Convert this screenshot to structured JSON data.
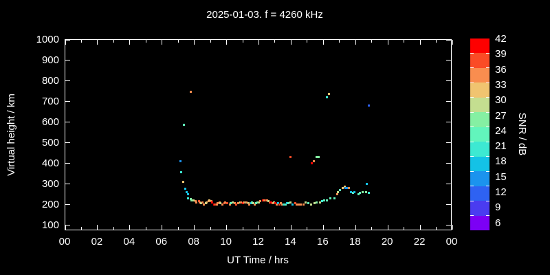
{
  "page": {
    "background": "#000000",
    "text_color": "#ffffff",
    "frame_color": "#ffffff"
  },
  "chart_data": {
    "type": "scatter",
    "title": "2025-01-03. f = 4260 kHz",
    "xlabel": "UT Time / hrs",
    "ylabel": "Virtual height / km",
    "colorbar_label": "SNR / dB",
    "xlim": [
      0,
      24
    ],
    "ylim": [
      73,
      1000
    ],
    "grid": false,
    "x_tick_hours": [
      0,
      2,
      4,
      6,
      8,
      10,
      12,
      14,
      16,
      18,
      20,
      22,
      24
    ],
    "x_tick_labels": [
      "00",
      "02",
      "04",
      "06",
      "08",
      "10",
      "12",
      "14",
      "16",
      "18",
      "20",
      "22",
      "00"
    ],
    "x_minor_step_hours": 1,
    "y_ticks": [
      100,
      200,
      300,
      400,
      500,
      600,
      700,
      800,
      900,
      1000
    ],
    "colorbar": {
      "tick_values": [
        42,
        39,
        36,
        33,
        30,
        27,
        24,
        21,
        18,
        15,
        12,
        9,
        6
      ],
      "segment_colors_top_to_bottom": [
        "#fe0000",
        "#fa4b26",
        "#f98d4f",
        "#f0c470",
        "#c4de90",
        "#85f0a3",
        "#62f5bc",
        "#3de9d2",
        "#14c2e6",
        "#1b93ee",
        "#2e62f2",
        "#4a3cf0",
        "#7c00f5"
      ]
    },
    "points_format": [
      "ut_hour",
      "virtual_height_km",
      "snr_db_band"
    ],
    "points": [
      [
        7.12,
        413,
        15
      ],
      [
        7.2,
        357,
        21
      ],
      [
        7.29,
        313,
        33
      ],
      [
        7.37,
        587,
        24
      ],
      [
        7.46,
        277,
        18
      ],
      [
        7.54,
        262,
        18
      ],
      [
        7.59,
        253,
        18
      ],
      [
        7.63,
        230,
        21
      ],
      [
        7.76,
        747,
        36
      ],
      [
        7.76,
        227,
        27
      ],
      [
        7.84,
        223,
        27
      ],
      [
        7.97,
        220,
        30
      ],
      [
        8.06,
        217,
        36
      ],
      [
        8.14,
        213,
        36
      ],
      [
        8.27,
        217,
        39
      ],
      [
        8.35,
        210,
        36
      ],
      [
        8.44,
        207,
        30
      ],
      [
        8.52,
        210,
        36
      ],
      [
        8.61,
        203,
        36
      ],
      [
        8.7,
        207,
        30
      ],
      [
        8.78,
        213,
        33
      ],
      [
        8.87,
        217,
        36
      ],
      [
        8.95,
        220,
        33
      ],
      [
        9.04,
        217,
        36
      ],
      [
        9.12,
        210,
        42
      ],
      [
        9.21,
        203,
        42
      ],
      [
        9.29,
        200,
        39
      ],
      [
        9.38,
        203,
        36
      ],
      [
        9.46,
        207,
        36
      ],
      [
        9.55,
        210,
        36
      ],
      [
        9.63,
        207,
        30
      ],
      [
        9.72,
        203,
        36
      ],
      [
        9.85,
        207,
        39
      ],
      [
        9.93,
        210,
        36
      ],
      [
        10.06,
        207,
        39
      ],
      [
        10.19,
        203,
        36
      ],
      [
        10.27,
        207,
        24
      ],
      [
        10.4,
        210,
        30
      ],
      [
        10.49,
        207,
        36
      ],
      [
        10.61,
        203,
        39
      ],
      [
        10.7,
        207,
        36
      ],
      [
        10.83,
        213,
        30
      ],
      [
        10.91,
        210,
        36
      ],
      [
        11.0,
        207,
        42
      ],
      [
        11.08,
        210,
        36
      ],
      [
        11.17,
        213,
        27
      ],
      [
        11.25,
        210,
        36
      ],
      [
        11.34,
        207,
        30
      ],
      [
        11.42,
        203,
        36
      ],
      [
        11.51,
        207,
        18
      ],
      [
        11.59,
        210,
        24
      ],
      [
        11.68,
        207,
        30
      ],
      [
        11.76,
        203,
        36
      ],
      [
        11.85,
        207,
        24
      ],
      [
        11.93,
        210,
        27
      ],
      [
        12.02,
        213,
        30
      ],
      [
        12.1,
        217,
        36
      ],
      [
        12.27,
        223,
        42
      ],
      [
        12.36,
        220,
        36
      ],
      [
        12.44,
        223,
        39
      ],
      [
        12.53,
        220,
        36
      ],
      [
        12.61,
        217,
        30
      ],
      [
        12.7,
        213,
        39
      ],
      [
        12.78,
        210,
        42
      ],
      [
        12.87,
        207,
        36
      ],
      [
        12.95,
        210,
        30
      ],
      [
        13.04,
        207,
        42
      ],
      [
        13.12,
        203,
        36
      ],
      [
        13.21,
        207,
        18
      ],
      [
        13.29,
        203,
        39
      ],
      [
        13.38,
        207,
        36
      ],
      [
        13.46,
        203,
        36
      ],
      [
        13.55,
        200,
        21
      ],
      [
        13.68,
        203,
        24
      ],
      [
        13.76,
        207,
        18
      ],
      [
        13.85,
        207,
        24
      ],
      [
        13.94,
        433,
        39
      ],
      [
        13.98,
        210,
        30
      ],
      [
        14.11,
        203,
        18
      ],
      [
        14.24,
        207,
        39
      ],
      [
        14.36,
        203,
        36
      ],
      [
        14.49,
        203,
        36
      ],
      [
        14.62,
        203,
        36
      ],
      [
        14.75,
        203,
        36
      ],
      [
        14.92,
        210,
        30
      ],
      [
        15.05,
        207,
        24
      ],
      [
        15.26,
        203,
        30
      ],
      [
        15.3,
        400,
        42
      ],
      [
        15.43,
        410,
        36
      ],
      [
        15.47,
        207,
        30
      ],
      [
        15.56,
        433,
        27
      ],
      [
        15.6,
        210,
        27
      ],
      [
        15.73,
        433,
        27
      ],
      [
        15.81,
        213,
        30
      ],
      [
        15.94,
        217,
        21
      ],
      [
        16.07,
        220,
        24
      ],
      [
        16.24,
        723,
        21
      ],
      [
        16.24,
        223,
        24
      ],
      [
        16.33,
        737,
        33
      ],
      [
        16.45,
        230,
        24
      ],
      [
        16.67,
        233,
        24
      ],
      [
        16.84,
        250,
        36
      ],
      [
        16.92,
        263,
        30
      ],
      [
        17.05,
        273,
        24
      ],
      [
        17.18,
        283,
        33
      ],
      [
        17.31,
        287,
        33
      ],
      [
        17.39,
        283,
        15
      ],
      [
        17.52,
        280,
        15
      ],
      [
        17.6,
        283,
        36
      ],
      [
        17.73,
        263,
        18
      ],
      [
        17.86,
        257,
        24
      ],
      [
        17.94,
        260,
        18
      ],
      [
        18.16,
        253,
        24
      ],
      [
        18.28,
        257,
        24
      ],
      [
        18.45,
        260,
        27
      ],
      [
        18.67,
        263,
        27
      ],
      [
        18.71,
        303,
        18
      ],
      [
        18.84,
        257,
        21
      ],
      [
        18.84,
        680,
        12
      ]
    ]
  }
}
